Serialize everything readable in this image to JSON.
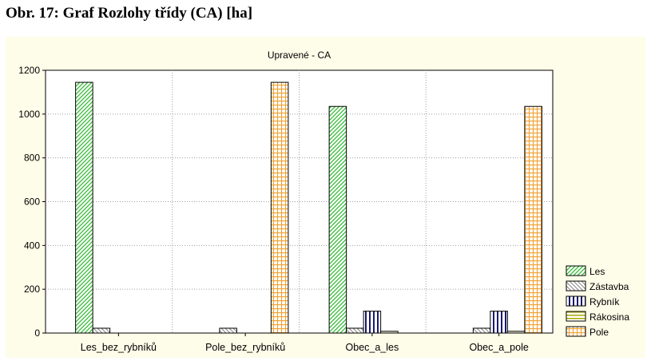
{
  "page": {
    "caption": "Obr. 17: Graf Rozlohy třídy (CA) [ha]"
  },
  "colors": {
    "panel_bg": "#fefde9",
    "plot_bg": "#ffffff",
    "grid": "#a0a0a0"
  },
  "chart_data": {
    "type": "bar",
    "title": "Upravené - CA",
    "xlabel": "",
    "ylabel": "",
    "ylim": [
      0,
      1200
    ],
    "yticks": [
      0,
      200,
      400,
      600,
      800,
      1000,
      1200
    ],
    "grid": true,
    "legend_position": "right-bottom",
    "categories": [
      "Les_bez_rybníků",
      "Pole_bez_rybníků",
      "Obec_a_les",
      "Obec_a_pole"
    ],
    "series": [
      {
        "name": "Les",
        "color": "#2db82d",
        "pattern": "diag-forward",
        "values": [
          1145,
          0,
          1035,
          0
        ]
      },
      {
        "name": "Zástavba",
        "color": "#8c8c8c",
        "pattern": "diag-back",
        "values": [
          22,
          22,
          22,
          22
        ]
      },
      {
        "name": "Rybník",
        "color": "#1a1a6e",
        "pattern": "vertical",
        "values": [
          0,
          0,
          100,
          100
        ]
      },
      {
        "name": "Rákosina",
        "color": "#a8a800",
        "pattern": "horizontal",
        "values": [
          0,
          0,
          8,
          8
        ]
      },
      {
        "name": "Pole",
        "color": "#f0a030",
        "pattern": "grid",
        "values": [
          0,
          1145,
          0,
          1035
        ]
      }
    ]
  }
}
